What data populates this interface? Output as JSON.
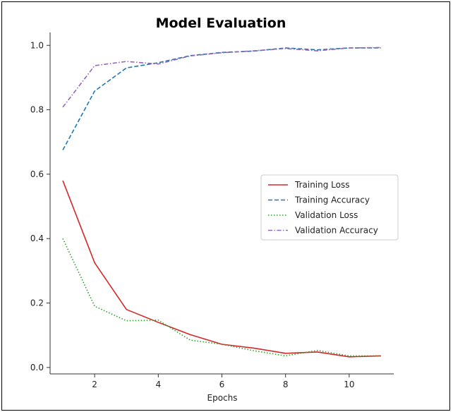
{
  "chart_data": {
    "type": "line",
    "title": "Model Evaluation",
    "xlabel": "Epochs",
    "ylabel": "",
    "xlim": [
      0.6,
      11.4
    ],
    "ylim": [
      -0.02,
      1.04
    ],
    "xticks": [
      2,
      4,
      6,
      8,
      10
    ],
    "yticks": [
      0.0,
      0.2,
      0.4,
      0.6,
      0.8,
      1.0
    ],
    "xtick_labels": [
      "2",
      "4",
      "6",
      "8",
      "10"
    ],
    "ytick_labels": [
      "0.0",
      "0.2",
      "0.4",
      "0.6",
      "0.8",
      "1.0"
    ],
    "grid": false,
    "legend_position": "center-right",
    "x": [
      1,
      2,
      3,
      4,
      5,
      6,
      7,
      8,
      9,
      10,
      11
    ],
    "series": [
      {
        "name": "Training Loss",
        "color": "#d62728",
        "dash": "solid",
        "values": [
          0.58,
          0.325,
          0.18,
          0.14,
          0.102,
          0.072,
          0.06,
          0.044,
          0.048,
          0.033,
          0.036
        ]
      },
      {
        "name": "Training Accuracy",
        "color": "#1f77b4",
        "dash": "dashed",
        "values": [
          0.675,
          0.858,
          0.93,
          0.946,
          0.968,
          0.978,
          0.982,
          0.992,
          0.986,
          0.992,
          0.992
        ]
      },
      {
        "name": "Validation Loss",
        "color": "#2ca02c",
        "dash": "dotted",
        "values": [
          0.4,
          0.19,
          0.145,
          0.147,
          0.085,
          0.072,
          0.052,
          0.036,
          0.053,
          0.036,
          0.036
        ]
      },
      {
        "name": "Validation Accuracy",
        "color": "#9467bd",
        "dash": "dashdot",
        "values": [
          0.808,
          0.937,
          0.95,
          0.942,
          0.967,
          0.977,
          0.983,
          0.99,
          0.983,
          0.992,
          0.993
        ]
      }
    ]
  }
}
